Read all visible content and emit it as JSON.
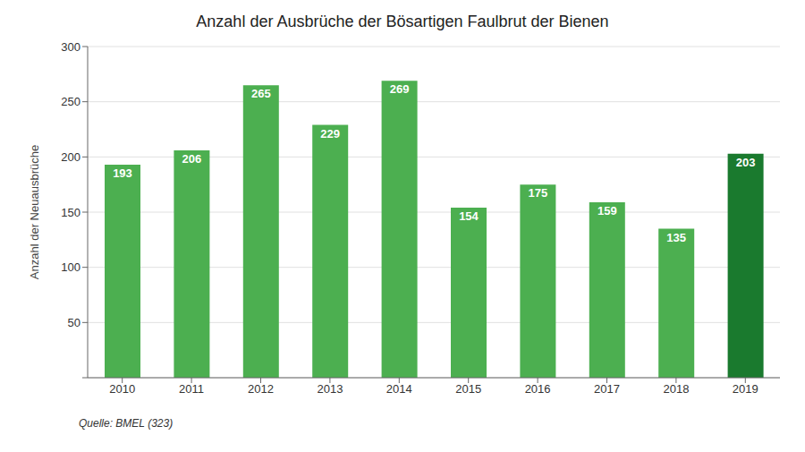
{
  "chart_data": {
    "type": "bar",
    "title": "Anzahl der Ausbrüche der Bösartigen Faulbrut der Bienen",
    "ylabel": "Anzahl der Neuausbrüche",
    "categories": [
      "2010",
      "2011",
      "2012",
      "2013",
      "2014",
      "2015",
      "2016",
      "2017",
      "2018",
      "2019"
    ],
    "values": [
      193,
      206,
      265,
      229,
      269,
      154,
      175,
      159,
      135,
      203
    ],
    "colors": [
      "#4caf50",
      "#4caf50",
      "#4caf50",
      "#4caf50",
      "#4caf50",
      "#4caf50",
      "#4caf50",
      "#4caf50",
      "#4caf50",
      "#1a7a2e"
    ],
    "ylim": [
      0,
      300
    ],
    "yticks": [
      {
        "value": 0,
        "label": ""
      },
      50,
      100,
      150,
      200,
      250,
      300
    ],
    "grid": true,
    "data_labels": true,
    "annotation": "Quelle: BMEL (323)"
  }
}
